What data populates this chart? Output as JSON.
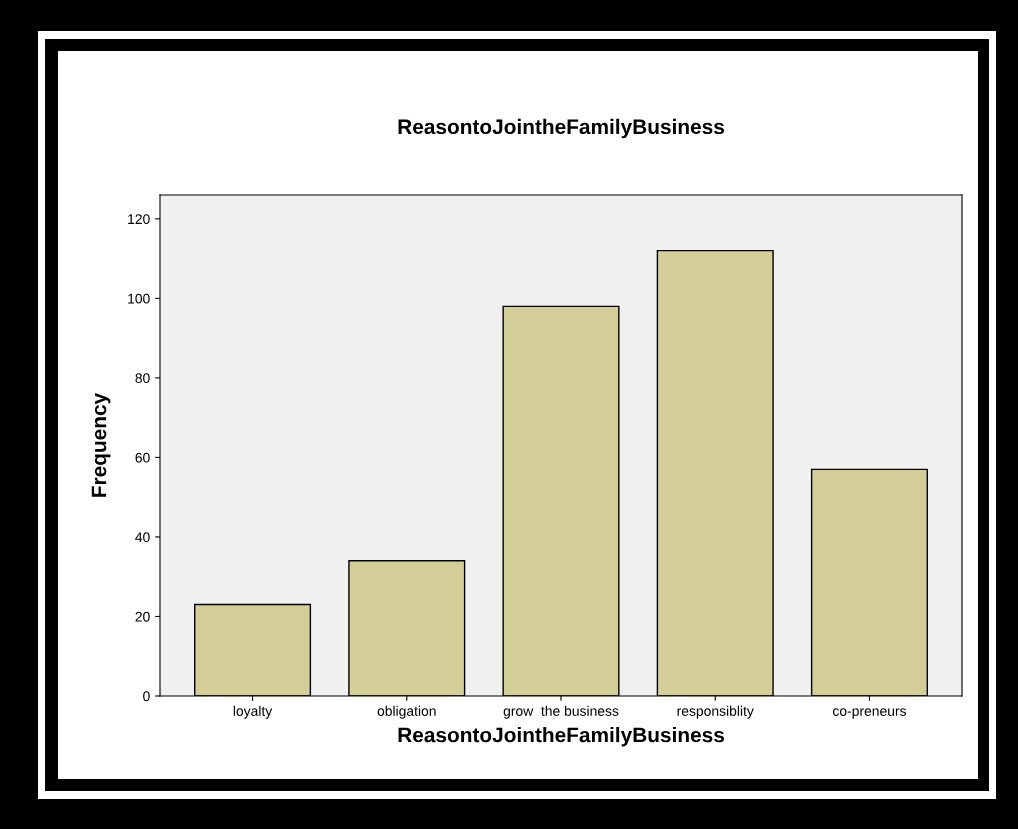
{
  "chart_data": {
    "type": "bar",
    "title": "ReasontoJointheFamilyBusiness",
    "xlabel": "ReasontoJointheFamilyBusiness",
    "ylabel": "Frequency",
    "categories": [
      "loyalty",
      "obligation",
      "grow  the business",
      "responsiblity",
      "co-preneurs"
    ],
    "values": [
      23,
      34,
      98,
      112,
      57
    ],
    "color": "#d3ce97",
    "ylim": [
      0,
      126
    ],
    "yticks": [
      0,
      20,
      40,
      60,
      80,
      100,
      120
    ],
    "grid": false
  }
}
